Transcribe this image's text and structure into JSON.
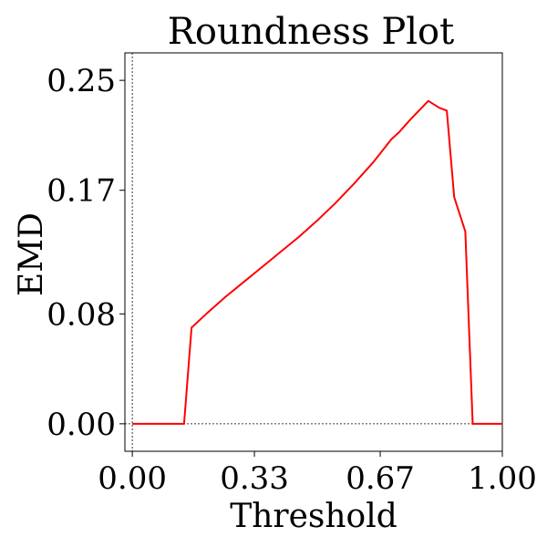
{
  "chart_data": {
    "type": "line",
    "title": "Roundness Plot",
    "xlabel": "Threshold",
    "ylabel": "EMD",
    "xlim": [
      0.0,
      1.0
    ],
    "ylim": [
      -0.02,
      0.27
    ],
    "xticks": [
      0.0,
      0.33,
      0.67,
      1.0
    ],
    "xtick_labels": [
      "0.00",
      "0.33",
      "0.67",
      "1.00"
    ],
    "yticks": [
      0.0,
      0.08,
      0.17,
      0.25
    ],
    "ytick_labels": [
      "0.00",
      "0.08",
      "0.17",
      "0.25"
    ],
    "reference_lines": {
      "x": 0.0,
      "y": 0.0,
      "style": "dotted"
    },
    "grid": false,
    "legend": false,
    "series": [
      {
        "color": "#ff0000",
        "x": [
          0.0,
          0.05,
          0.1,
          0.14,
          0.16,
          0.2,
          0.25,
          0.3,
          0.35,
          0.4,
          0.45,
          0.5,
          0.55,
          0.6,
          0.65,
          0.7,
          0.72,
          0.75,
          0.8,
          0.83,
          0.85,
          0.87,
          0.9,
          0.92,
          0.95,
          1.0
        ],
        "y": [
          0.0,
          0.0,
          0.0,
          0.0,
          0.07,
          0.08,
          0.092,
          0.103,
          0.114,
          0.125,
          0.136,
          0.148,
          0.161,
          0.175,
          0.19,
          0.207,
          0.212,
          0.221,
          0.235,
          0.23,
          0.228,
          0.165,
          0.14,
          0.0,
          0.0,
          0.0
        ]
      }
    ]
  }
}
